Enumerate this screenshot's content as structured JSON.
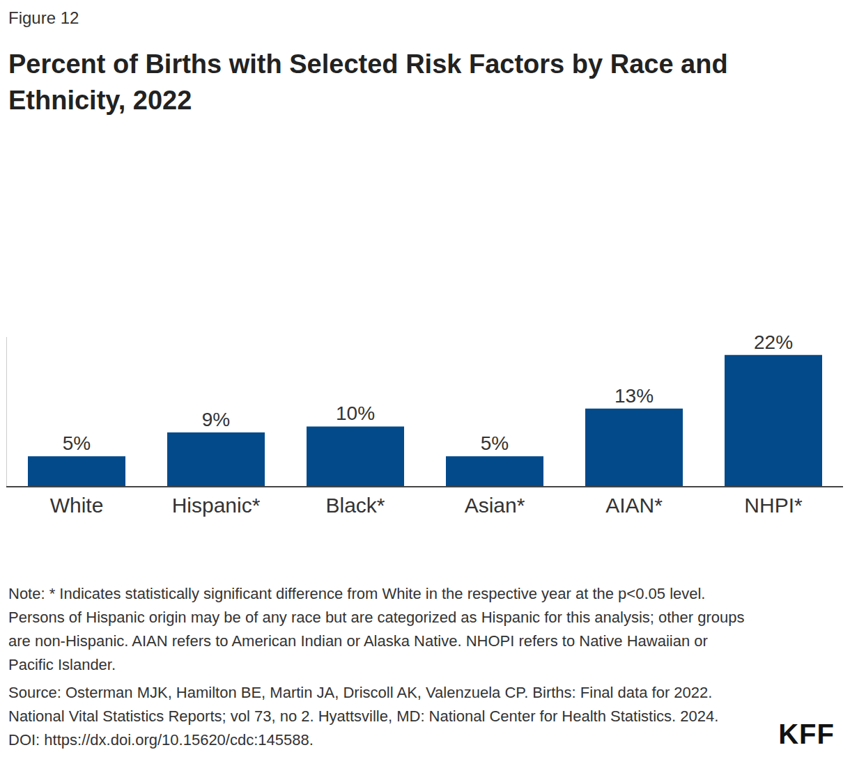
{
  "chart_data": {
    "type": "bar",
    "figure_label": "Figure 12",
    "title": "Percent of Births with Selected Risk Factors by Race and Ethnicity, 2022",
    "categories": [
      "White",
      "Hispanic*",
      "Black*",
      "Asian*",
      "AIAN*",
      "NHPI*"
    ],
    "values": [
      5,
      9,
      10,
      5,
      13,
      22
    ],
    "value_labels": [
      "5%",
      "9%",
      "10%",
      "5%",
      "13%",
      "22%"
    ],
    "color": "#034a8b",
    "ylim": [
      0,
      25
    ],
    "grid": false,
    "data_labels": true,
    "tick_labels": "x",
    "note": "Note: * Indicates statistically significant difference from White in the respective year at the p<0.05 level. Persons of Hispanic origin may be of any race but are categorized as Hispanic for this analysis; other groups are non-Hispanic. AIAN refers to American Indian or Alaska Native. NHOPI refers to Native Hawaiian or Pacific Islander.",
    "source": "Source: Osterman MJK, Hamilton BE, Martin JA, Driscoll AK, Valenzuela CP. Births: Final data for 2022. National Vital Statistics Reports; vol 73, no 2. Hyattsville, MD: National Center for Health Statistics. 2024. DOI: https://dx.doi.org/10.15620/cdc:145588.",
    "logo": "KFF"
  }
}
